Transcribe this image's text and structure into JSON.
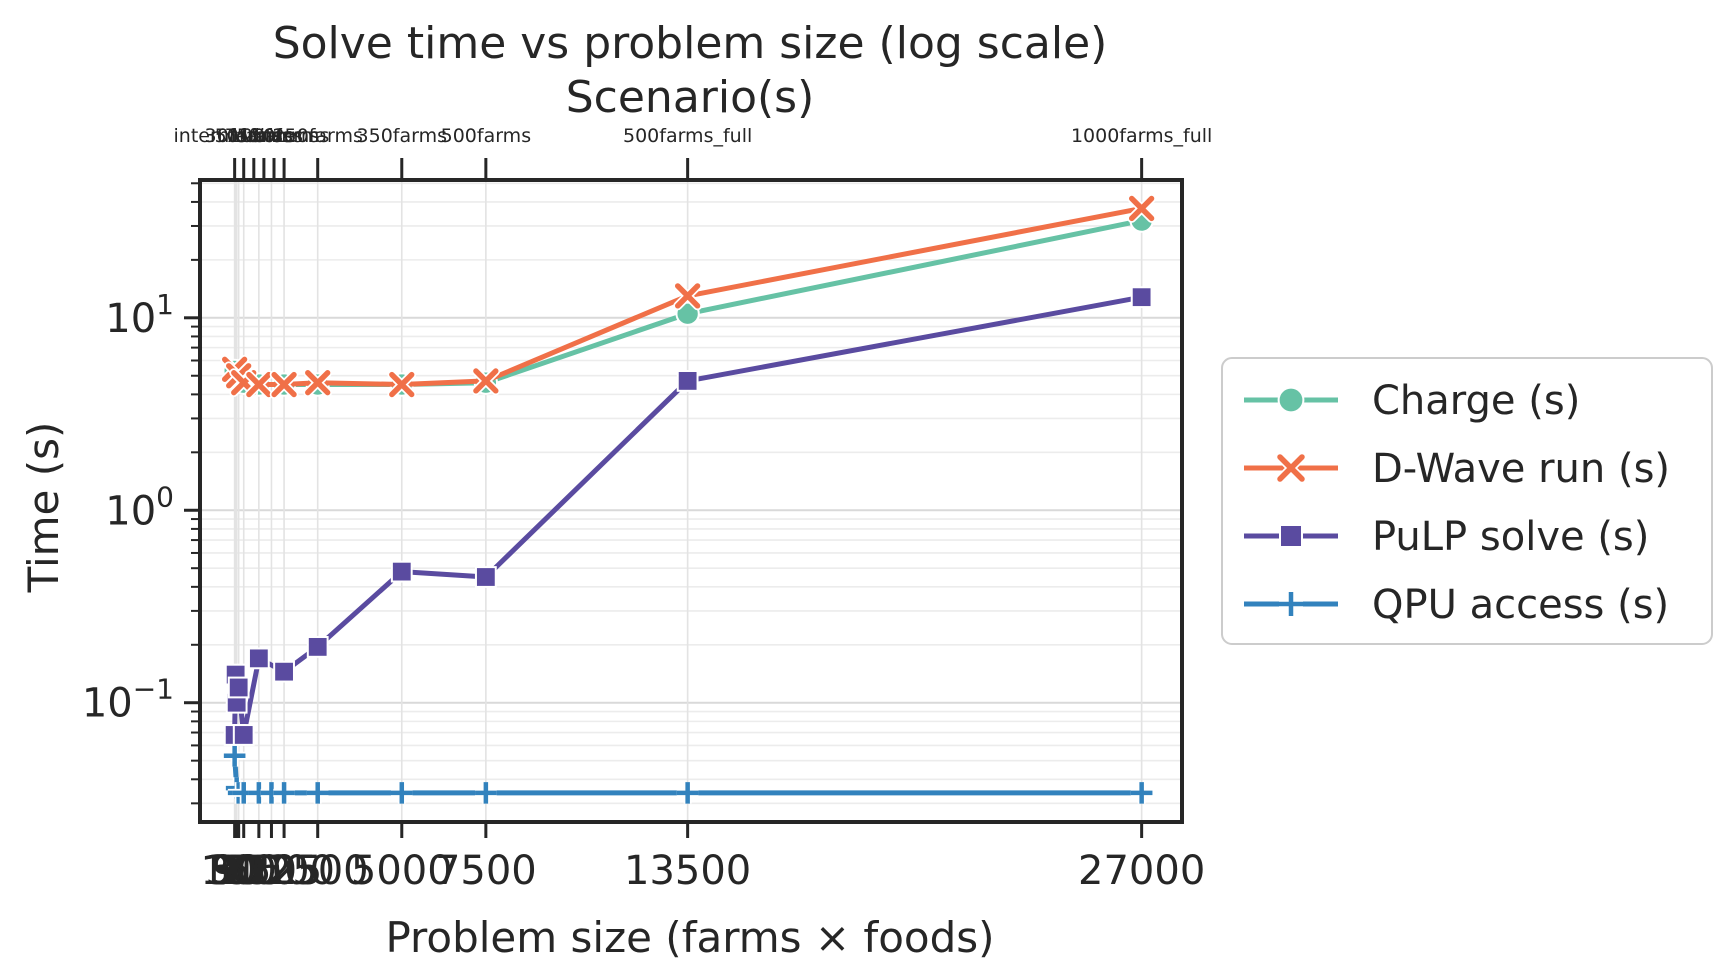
{
  "chart_data": {
    "type": "line",
    "title": "Solve time vs problem size (log scale)",
    "top_axis_label": "Scenario(s)",
    "xlabel": "Problem size (farms × foods)",
    "ylabel": "Time (s)",
    "y_scale": "log",
    "xlim": [
      -1000,
      28200
    ],
    "ylim": [
      0.024,
      52
    ],
    "x_ticks": [
      {
        "value": 30,
        "label": "30"
      },
      {
        "value": 50,
        "label": "50"
      },
      {
        "value": 90,
        "label": "90"
      },
      {
        "value": 150,
        "label": "150"
      },
      {
        "value": 300,
        "label": "300"
      },
      {
        "value": 750,
        "label": "750"
      },
      {
        "value": 1125,
        "label": "1125"
      },
      {
        "value": 1500,
        "label": "1500"
      },
      {
        "value": 2500,
        "label": "2500"
      },
      {
        "value": 5000,
        "label": "5000"
      },
      {
        "value": 7500,
        "label": "7500"
      },
      {
        "value": 13500,
        "label": "13500"
      },
      {
        "value": 27000,
        "label": "27000"
      }
    ],
    "top_ticks": [
      {
        "value": 30,
        "label": "intermediate"
      },
      {
        "value": 300,
        "label": "30farms"
      },
      {
        "value": 600,
        "label": "50farms"
      },
      {
        "value": 900,
        "label": "75farms"
      },
      {
        "value": 1200,
        "label": "100farms"
      },
      {
        "value": 1500,
        "label": "150farms"
      },
      {
        "value": 2500,
        "label": "250farms"
      },
      {
        "value": 5000,
        "label": "350farms"
      },
      {
        "value": 7500,
        "label": "500farms"
      },
      {
        "value": 13500,
        "label": "500farms_full"
      },
      {
        "value": 27000,
        "label": "1000farms_full"
      }
    ],
    "y_ticks": [
      {
        "value": 0.1,
        "base": "10",
        "exp": "−1"
      },
      {
        "value": 1,
        "base": "10",
        "exp": "0"
      },
      {
        "value": 10,
        "base": "10",
        "exp": "1"
      }
    ],
    "grid": true,
    "legend_position": "right, outside plot",
    "series": [
      {
        "name": "Charge (s)",
        "color": "#66c2a5",
        "marker": "circle",
        "points": [
          [
            30,
            5.3
          ],
          [
            150,
            5.0
          ],
          [
            300,
            4.6
          ],
          [
            750,
            4.5
          ],
          [
            1500,
            4.5
          ],
          [
            2500,
            4.5
          ],
          [
            5000,
            4.5
          ],
          [
            7500,
            4.6
          ],
          [
            13500,
            10.5
          ],
          [
            27000,
            32.0
          ]
        ]
      },
      {
        "name": "D-Wave run (s)",
        "color": "#f07048",
        "marker": "x",
        "points": [
          [
            30,
            5.4
          ],
          [
            150,
            5.0
          ],
          [
            300,
            4.6
          ],
          [
            750,
            4.5
          ],
          [
            1500,
            4.5
          ],
          [
            2500,
            4.6
          ],
          [
            5000,
            4.5
          ],
          [
            7500,
            4.7
          ],
          [
            13500,
            13.0
          ],
          [
            27000,
            37.0
          ]
        ]
      },
      {
        "name": "PuLP solve (s)",
        "color": "#5a4ba0",
        "marker": "square",
        "points": [
          [
            30,
            0.068
          ],
          [
            60,
            0.14
          ],
          [
            90,
            0.1
          ],
          [
            150,
            0.12
          ],
          [
            300,
            0.068
          ],
          [
            750,
            0.17
          ],
          [
            1500,
            0.145
          ],
          [
            2500,
            0.195
          ],
          [
            5000,
            0.48
          ],
          [
            7500,
            0.45
          ],
          [
            13500,
            4.7
          ],
          [
            27000,
            12.8
          ]
        ]
      },
      {
        "name": "QPU access (s)",
        "color": "#3282bd",
        "marker": "plus",
        "points": [
          [
            30,
            0.053
          ],
          [
            90,
            0.036
          ],
          [
            150,
            0.034
          ],
          [
            300,
            0.034
          ],
          [
            750,
            0.034
          ],
          [
            1125,
            0.034
          ],
          [
            1500,
            0.034
          ],
          [
            2500,
            0.034
          ],
          [
            5000,
            0.034
          ],
          [
            7500,
            0.034
          ],
          [
            13500,
            0.034
          ],
          [
            27000,
            0.034
          ]
        ]
      }
    ]
  }
}
